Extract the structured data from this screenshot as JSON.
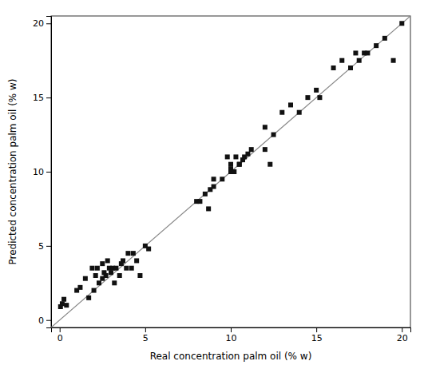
{
  "chart_data": {
    "type": "scatter",
    "xlabel": "Real concentration palm oil (% w)",
    "ylabel": "Predicted concentration palm oil (% w)",
    "xlim": [
      -0.5,
      20.5
    ],
    "ylim": [
      -0.5,
      20.5
    ],
    "xticks": [
      0,
      5,
      10,
      15,
      20
    ],
    "yticks": [
      0,
      5,
      10,
      15,
      20
    ],
    "grid": false,
    "series": [
      {
        "type": "scatter",
        "marker": "square",
        "color": "#111111",
        "x": [
          0.05,
          0.15,
          0.25,
          0.4,
          1.0,
          1.2,
          1.5,
          1.7,
          1.9,
          2.0,
          2.1,
          2.2,
          2.3,
          2.5,
          2.5,
          2.6,
          2.7,
          2.8,
          2.9,
          3.0,
          3.1,
          3.2,
          3.3,
          3.5,
          3.6,
          3.7,
          3.9,
          4.0,
          4.2,
          4.3,
          4.5,
          4.7,
          5.0,
          5.2,
          8.0,
          8.2,
          8.5,
          8.7,
          8.8,
          9.0,
          9.0,
          9.5,
          9.8,
          10.0,
          10.0,
          10.0,
          10.2,
          10.3,
          10.5,
          10.5,
          10.7,
          10.8,
          11.0,
          11.2,
          12.0,
          12.0,
          12.3,
          12.5,
          13.0,
          13.5,
          14.0,
          14.5,
          15.0,
          15.2,
          16.0,
          16.5,
          17.0,
          17.3,
          17.5,
          17.8,
          18.0,
          18.5,
          19.0,
          19.5,
          20.0
        ],
        "values": [
          0.9,
          1.1,
          1.4,
          1.0,
          2.0,
          2.2,
          2.8,
          1.5,
          3.5,
          2.0,
          3.0,
          3.5,
          2.5,
          3.8,
          2.8,
          3.2,
          3.0,
          4.0,
          3.5,
          3.2,
          3.5,
          2.5,
          3.5,
          3.0,
          3.8,
          4.0,
          3.5,
          4.5,
          3.5,
          4.5,
          4.0,
          3.0,
          5.0,
          4.8,
          8.0,
          8.0,
          8.5,
          7.5,
          8.8,
          9.5,
          9.0,
          9.5,
          11.0,
          10.5,
          10.0,
          10.2,
          10.0,
          11.0,
          10.5,
          10.5,
          10.8,
          11.0,
          11.2,
          11.5,
          13.0,
          11.5,
          10.5,
          12.5,
          14.0,
          14.5,
          14.0,
          15.0,
          15.5,
          15.0,
          17.0,
          17.5,
          17.0,
          18.0,
          17.5,
          18.0,
          18.0,
          18.5,
          19.0,
          17.5,
          20.0
        ]
      },
      {
        "type": "line",
        "line_style": "solid",
        "color": "#888888",
        "x": [
          -0.5,
          20.5
        ],
        "values": [
          -0.5,
          20.5
        ]
      }
    ]
  }
}
